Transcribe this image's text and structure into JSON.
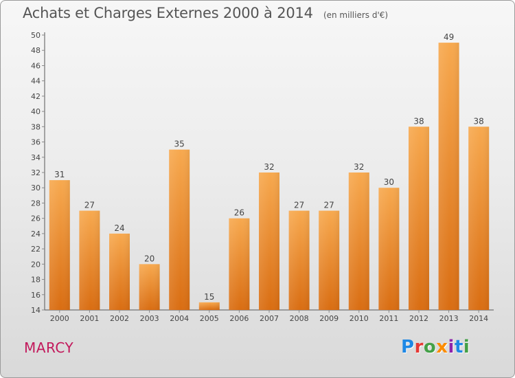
{
  "header": {
    "title": "Achats et Charges Externes 2000 à 2014",
    "unit": "(en milliers d'€)"
  },
  "footer": {
    "commune": "MARCY",
    "logo_letters": [
      "P",
      "r",
      "o",
      "x",
      "i",
      "t",
      "i"
    ]
  },
  "colors": {
    "bar_top": "#f7a94f",
    "bar_bottom": "#d96d12",
    "axis": "#555555",
    "grid_tick": "#888888",
    "commune": "#c2185b"
  },
  "chart_data": {
    "type": "bar",
    "title": "Achats et Charges Externes 2000 à 2014",
    "subtitle": "(en milliers d'€)",
    "categories": [
      "2000",
      "2001",
      "2002",
      "2003",
      "2004",
      "2005",
      "2006",
      "2007",
      "2008",
      "2009",
      "2010",
      "2011",
      "2012",
      "2013",
      "2014"
    ],
    "values": [
      31,
      27,
      24,
      20,
      35,
      15,
      26,
      32,
      27,
      27,
      32,
      30,
      38,
      49,
      38
    ],
    "ylim": [
      14,
      50
    ],
    "yticks": [
      14,
      16,
      18,
      20,
      22,
      24,
      26,
      28,
      30,
      32,
      34,
      36,
      38,
      40,
      42,
      44,
      46,
      48,
      50
    ],
    "grid": false,
    "legend": "none"
  }
}
